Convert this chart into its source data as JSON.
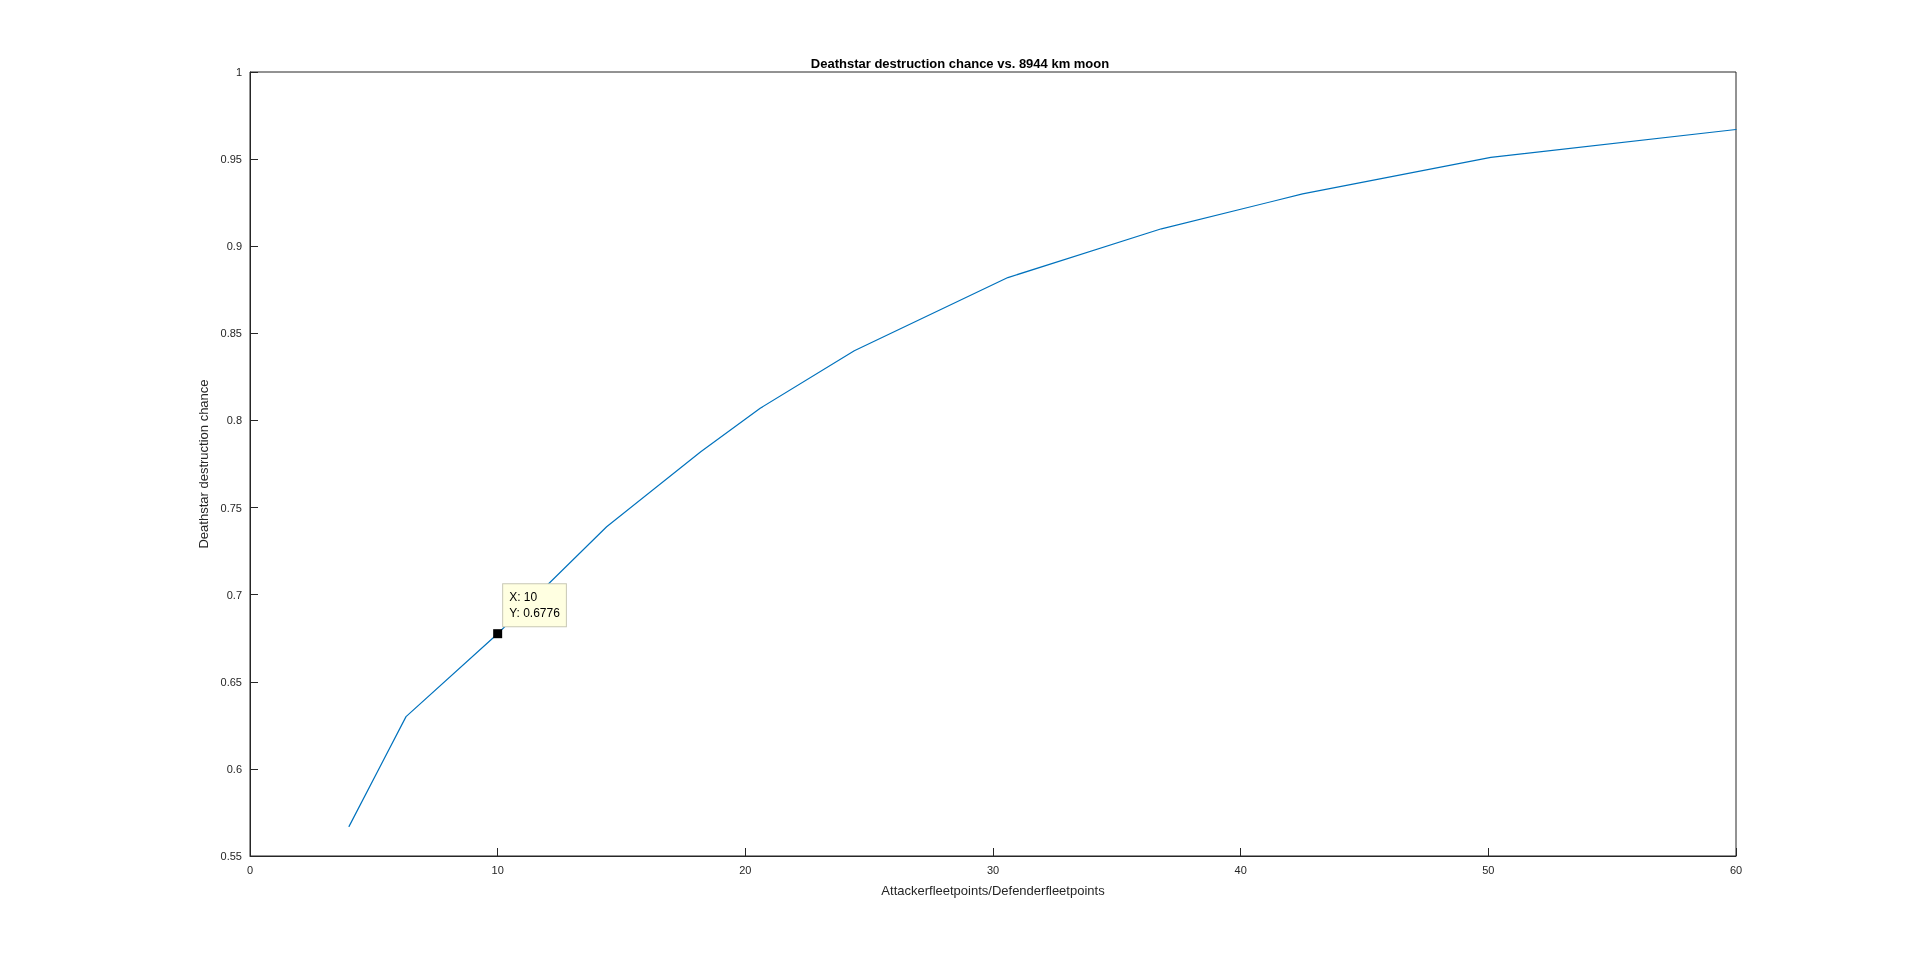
{
  "chart_data": {
    "type": "line",
    "title": "Deathstar destruction chance vs. 8944 km moon",
    "xlabel": "Attackerfleetpoints/Defenderfleetpoints",
    "ylabel": "Deathstar destruction chance",
    "x": [
      4,
      6.3,
      10,
      14.4,
      18.2,
      20.6,
      24.4,
      30.6,
      36.8,
      42.5,
      50.1,
      60
    ],
    "series": [
      {
        "color": "#0072bd",
        "values": [
          0.567,
          0.63,
          0.6776,
          0.739,
          0.782,
          0.807,
          0.84,
          0.882,
          0.91,
          0.93,
          0.951,
          0.967
        ]
      }
    ],
    "xlim": [
      0,
      60
    ],
    "xticks": [
      0,
      10,
      20,
      30,
      40,
      50,
      60
    ],
    "ylim": [
      0.55,
      1
    ],
    "yticks": [
      0.55,
      0.6,
      0.65,
      0.7,
      0.75,
      0.8,
      0.85,
      0.9,
      0.95,
      1
    ],
    "annotations": [
      {
        "text": "X: 10\nY: 0.6776",
        "x": 10,
        "y": 0.6776
      }
    ],
    "grid": false,
    "marker": "none",
    "line_style": "solid"
  }
}
